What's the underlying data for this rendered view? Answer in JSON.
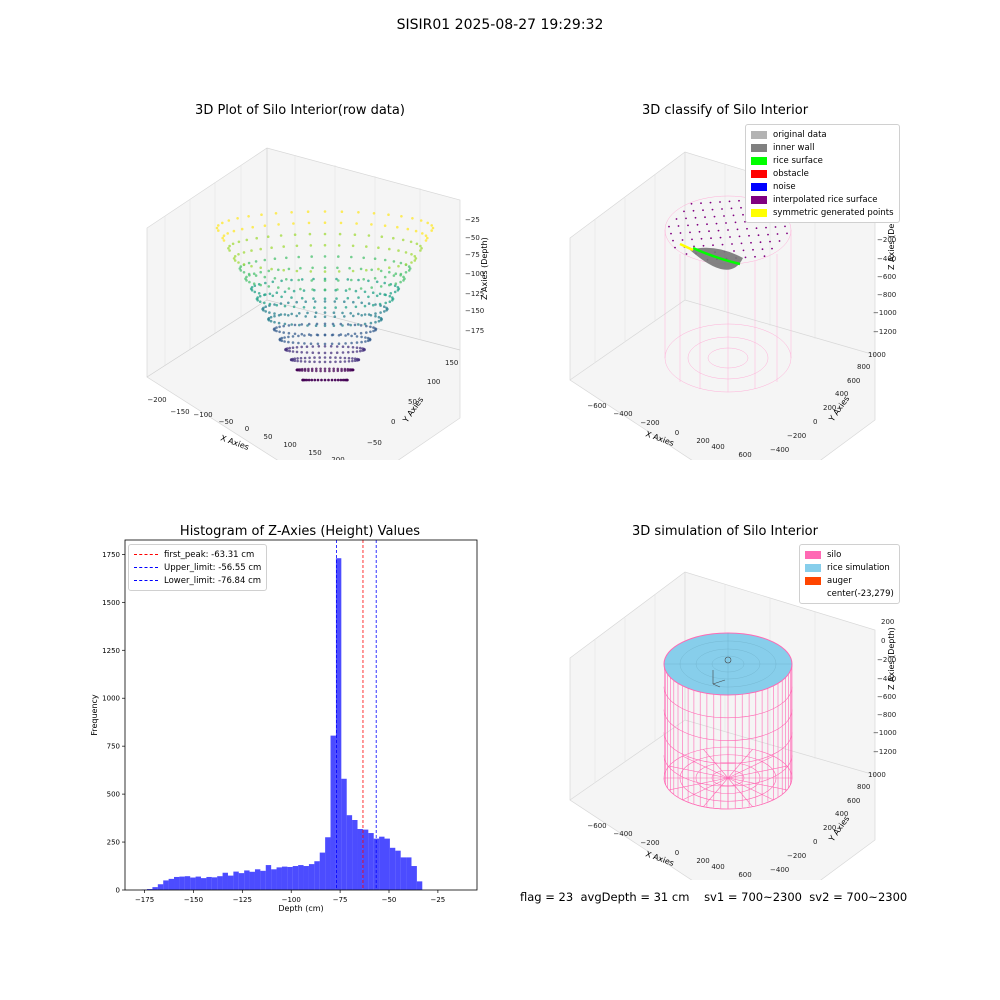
{
  "suptitle": "SISIR01 2025-08-27 19:29:32",
  "chart_data": [
    {
      "type": "scatter",
      "title": "3D Plot of Silo Interior(row data)",
      "xlabel": "X Axies",
      "ylabel": "Y Axies",
      "zlabel": "Z Axies (Depth)",
      "xticks": [
        "−200",
        "−150",
        "−100",
        "−50",
        "0",
        "50",
        "100",
        "150",
        "200"
      ],
      "yticks": [
        "−50",
        "0",
        "50",
        "100",
        "150"
      ],
      "zticks": [
        "−25",
        "−50",
        "−75",
        "−100",
        "−125",
        "−150",
        "−175"
      ],
      "colormap": "viridis"
    },
    {
      "type": "scatter",
      "title": "3D classify of Silo Interior",
      "xlabel": "X Axies",
      "ylabel": "Y Axies",
      "zlabel": "Z Axies (Depth)",
      "xticks": [
        "−600",
        "−400",
        "−200",
        "0",
        "200",
        "400",
        "600"
      ],
      "yticks": [
        "−400",
        "−200",
        "0",
        "200",
        "400",
        "600",
        "800",
        "1000"
      ],
      "zticks": [
        "200",
        "0",
        "−200",
        "−400",
        "−600",
        "−800",
        "−1000",
        "−1200"
      ],
      "legend": [
        {
          "label": "original data",
          "color": "#b3b3b3"
        },
        {
          "label": "inner wall",
          "color": "#808080"
        },
        {
          "label": "rice surface",
          "color": "#00ff00"
        },
        {
          "label": "obstacle",
          "color": "#ff0000"
        },
        {
          "label": "noise",
          "color": "#0000ff"
        },
        {
          "label": "interpolated rice surface",
          "color": "#800080"
        },
        {
          "label": "symmetric generated points",
          "color": "#ffff00"
        }
      ]
    },
    {
      "type": "bar",
      "title": "Histogram of Z-Axies (Height) Values",
      "xlabel": "Depth (cm)",
      "ylabel": "Frequency",
      "xlim": [
        -185,
        -5
      ],
      "ylim": [
        0,
        1825
      ],
      "xticks": [
        -175,
        -150,
        -125,
        -100,
        -75,
        -50,
        -25
      ],
      "yticks": [
        0,
        250,
        500,
        750,
        1000,
        1250,
        1500,
        1750
      ],
      "bar_color": "#0000ff",
      "bin_start": -176.5,
      "bin_width": 2.76,
      "values": [
        2,
        5,
        15,
        30,
        50,
        58,
        68,
        70,
        72,
        65,
        70,
        62,
        68,
        66,
        72,
        90,
        75,
        96,
        88,
        102,
        95,
        108,
        100,
        130,
        108,
        118,
        122,
        120,
        125,
        130,
        125,
        135,
        150,
        195,
        275,
        805,
        1730,
        580,
        390,
        365,
        318,
        315,
        297,
        268,
        278,
        268,
        220,
        205,
        170,
        170,
        125,
        45
      ],
      "lines": [
        {
          "label": "first_peak: -63.31 cm",
          "value": -63.31,
          "color": "#ff0000"
        },
        {
          "label": "Upper_limit: -56.55 cm",
          "value": -56.55,
          "color": "#0000ff"
        },
        {
          "label": "Lower_limit: -76.84 cm",
          "value": -76.84,
          "color": "#0000ff"
        }
      ]
    },
    {
      "type": "scatter",
      "title": "3D simulation of Silo Interior",
      "xlabel": "X Axies",
      "ylabel": "Y Axies",
      "zlabel": "Z Axies (Depth)",
      "xticks": [
        "−600",
        "−400",
        "−200",
        "0",
        "200",
        "400",
        "600"
      ],
      "yticks": [
        "−400",
        "−200",
        "0",
        "200",
        "400",
        "600",
        "800",
        "1000"
      ],
      "zticks": [
        "200",
        "0",
        "−200",
        "−400",
        "−600",
        "−800",
        "−1000",
        "−1200"
      ],
      "legend": [
        {
          "label": "silo",
          "color": "#ff69b4"
        },
        {
          "label": "rice simulation",
          "color": "#87ceeb"
        },
        {
          "label": "auger",
          "color": "#ff4500"
        },
        {
          "label": "center(-23,279)",
          "color": ""
        }
      ]
    }
  ],
  "footer": {
    "flag": "flag = 23",
    "avg_depth": "avgDepth = 31 cm",
    "sv1": "sv1 = 700~2300",
    "sv2": "sv2 = 700~2300"
  }
}
